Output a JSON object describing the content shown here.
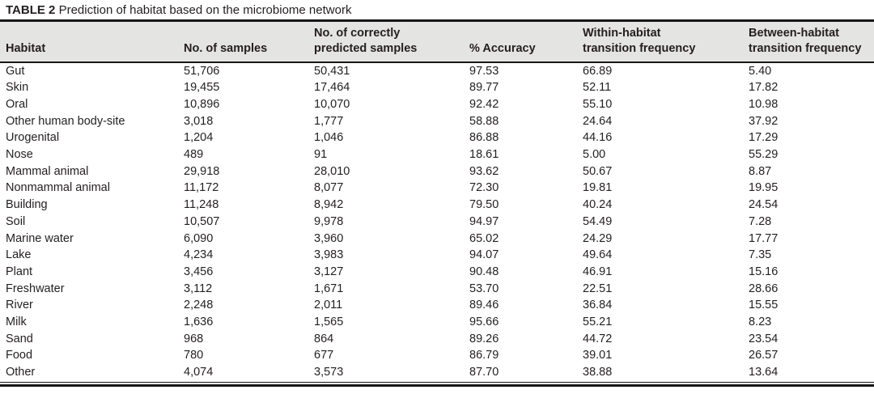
{
  "title": {
    "label": "TABLE 2",
    "text": "Prediction of habitat based on the microbiome network"
  },
  "table": {
    "columns": [
      {
        "lines": [
          "Habitat"
        ]
      },
      {
        "lines": [
          "No. of samples"
        ]
      },
      {
        "lines": [
          "No. of correctly",
          "predicted samples"
        ]
      },
      {
        "lines": [
          "% Accuracy"
        ]
      },
      {
        "lines": [
          "Within-habitat",
          "transition frequency"
        ]
      },
      {
        "lines": [
          "Between-habitat",
          "transition frequency"
        ]
      }
    ],
    "rows": [
      [
        "Gut",
        "51,706",
        "50,431",
        "97.53",
        "66.89",
        "5.40"
      ],
      [
        "Skin",
        "19,455",
        "17,464",
        "89.77",
        "52.11",
        "17.82"
      ],
      [
        "Oral",
        "10,896",
        "10,070",
        "92.42",
        "55.10",
        "10.98"
      ],
      [
        "Other human body-site",
        "3,018",
        "1,777",
        "58.88",
        "24.64",
        "37.92"
      ],
      [
        "Urogenital",
        "1,204",
        "1,046",
        "86.88",
        "44.16",
        "17.29"
      ],
      [
        "Nose",
        "489",
        "91",
        "18.61",
        "5.00",
        "55.29"
      ],
      [
        "Mammal animal",
        "29,918",
        "28,010",
        "93.62",
        "50.67",
        "8.87"
      ],
      [
        "Nonmammal animal",
        "11,172",
        "8,077",
        "72.30",
        "19.81",
        "19.95"
      ],
      [
        "Building",
        "11,248",
        "8,942",
        "79.50",
        "40.24",
        "24.54"
      ],
      [
        "Soil",
        "10,507",
        "9,978",
        "94.97",
        "54.49",
        "7.28"
      ],
      [
        "Marine water",
        "6,090",
        "3,960",
        "65.02",
        "24.29",
        "17.77"
      ],
      [
        "Lake",
        "4,234",
        "3,983",
        "94.07",
        "49.64",
        "7.35"
      ],
      [
        "Plant",
        "3,456",
        "3,127",
        "90.48",
        "46.91",
        "15.16"
      ],
      [
        "Freshwater",
        "3,112",
        "1,671",
        "53.70",
        "22.51",
        "28.66"
      ],
      [
        "River",
        "2,248",
        "2,011",
        "89.46",
        "36.84",
        "15.55"
      ],
      [
        "Milk",
        "1,636",
        "1,565",
        "95.66",
        "55.21",
        "8.23"
      ],
      [
        "Sand",
        "968",
        "864",
        "89.26",
        "44.72",
        "23.54"
      ],
      [
        "Food",
        "780",
        "677",
        "86.79",
        "39.01",
        "26.57"
      ],
      [
        "Other",
        "4,074",
        "3,573",
        "87.70",
        "38.88",
        "13.64"
      ]
    ]
  },
  "colors": {
    "header_bg": "#e4e4e2",
    "rule": "#161616",
    "text": "#231f20"
  }
}
